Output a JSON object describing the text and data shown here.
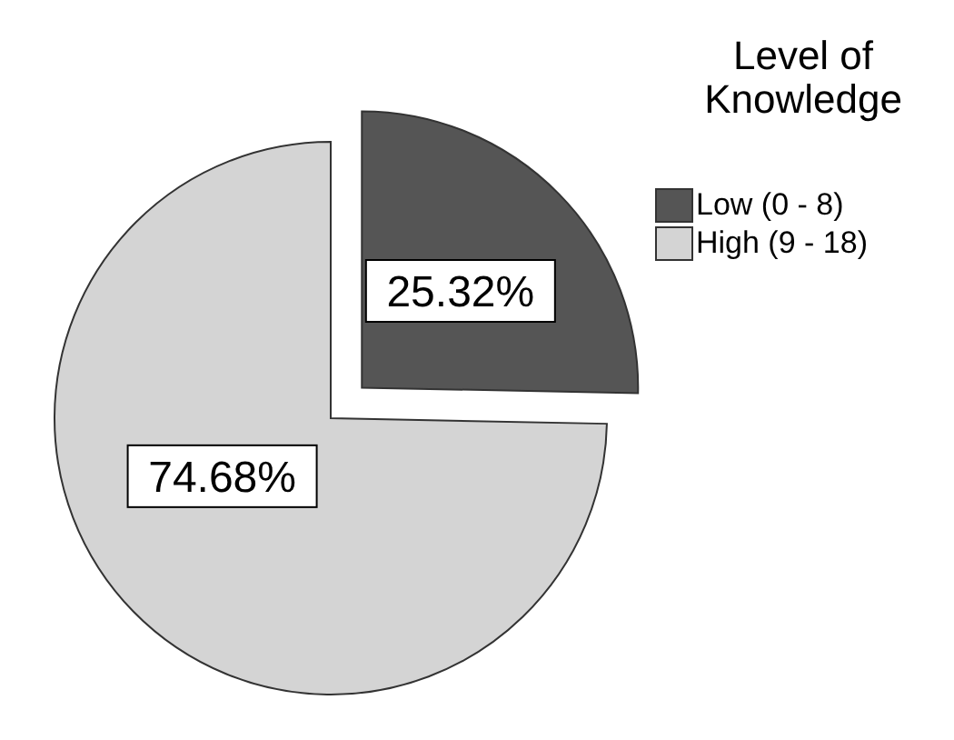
{
  "chart_data": {
    "type": "pie",
    "legend_title": "Level of Knowledge",
    "legend": "top right",
    "categories": [
      "Low (0 - 8)",
      "High (9 - 18)"
    ],
    "values": [
      25.32,
      74.68
    ],
    "colors": [
      "#555555",
      "#d4d4d4"
    ],
    "value_labels": [
      "25.32%",
      "74.68%"
    ]
  }
}
